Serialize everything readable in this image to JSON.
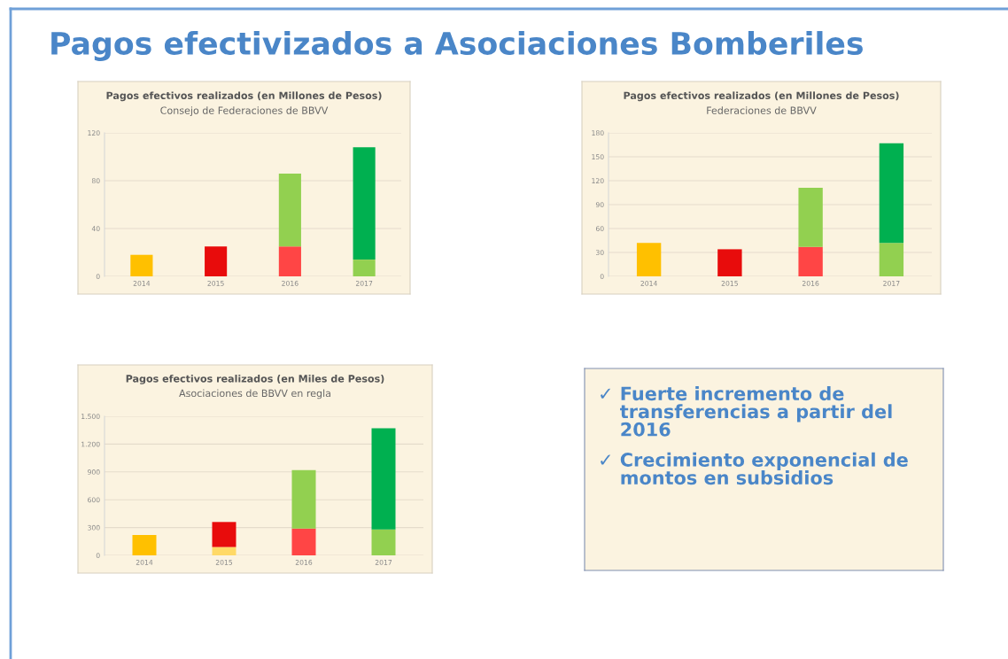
{
  "chart_data": [
    {
      "type": "other",
      "title": "Pagos efectivizados a Asociaciones Bomberiles"
    },
    {
      "type": "bar",
      "stacked": true,
      "title": "Pagos efectivos realizados (en Millones de Pesos)",
      "subtitle": "Consejo de Federaciones de BBVV",
      "categories": [
        "2014",
        "2015",
        "2016",
        "2017"
      ],
      "series": [
        {
          "values": [
            18,
            25,
            25,
            14
          ],
          "colors": [
            "#ffc000",
            "#e80c0c",
            "#ff4545",
            "#92d050"
          ]
        },
        {
          "values": [
            null,
            null,
            61,
            94
          ],
          "colors": [
            "#92d050",
            "#92d050",
            "#92d050",
            "#00b050"
          ]
        }
      ],
      "ylim": [
        0,
        120
      ],
      "yticks": [
        0,
        40,
        80,
        120
      ],
      "grid": "y"
    },
    {
      "type": "bar",
      "stacked": true,
      "title": "Pagos efectivos realizados (en Millones de Pesos)",
      "subtitle": "Federaciones de BBVV",
      "categories": [
        "2014",
        "2015",
        "2016",
        "2017"
      ],
      "series": [
        {
          "values": [
            42,
            34,
            37,
            42
          ],
          "colors": [
            "#ffc000",
            "#e80c0c",
            "#ff4545",
            "#92d050"
          ]
        },
        {
          "values": [
            null,
            null,
            74,
            125
          ],
          "colors": [
            "#92d050",
            "#92d050",
            "#92d050",
            "#00b050"
          ]
        }
      ],
      "ylim": [
        0,
        180
      ],
      "yticks": [
        0,
        30,
        60,
        90,
        120,
        150,
        180
      ],
      "grid": "y"
    },
    {
      "type": "bar",
      "stacked": true,
      "title": "Pagos efectivos realizados (en Miles de Pesos)",
      "subtitle": "Asociaciones de BBVV en regla",
      "categories": [
        "2014",
        "2015",
        "2016",
        "2017"
      ],
      "series": [
        {
          "values": [
            220,
            90,
            290,
            280
          ],
          "colors": [
            "#ffc000",
            "#ffd966",
            "#ff4545",
            "#92d050"
          ]
        },
        {
          "values": [
            null,
            270,
            630,
            1090
          ],
          "colors": [
            "#e80c0c",
            "#e80c0c",
            "#92d050",
            "#00b050"
          ]
        }
      ],
      "ylim": [
        0,
        1500
      ],
      "yticks": [
        0,
        300,
        600,
        900,
        {
          "value": 1200,
          "label": "1.200"
        },
        {
          "value": 1500,
          "label": "1.500"
        }
      ],
      "grid": "y"
    },
    {
      "type": "other",
      "annotations": [
        "✓ Fuerte incremento de transferencias a partir del 2016",
        "✓ Crecimiento exponencial de montos en subsidios"
      ]
    }
  ]
}
